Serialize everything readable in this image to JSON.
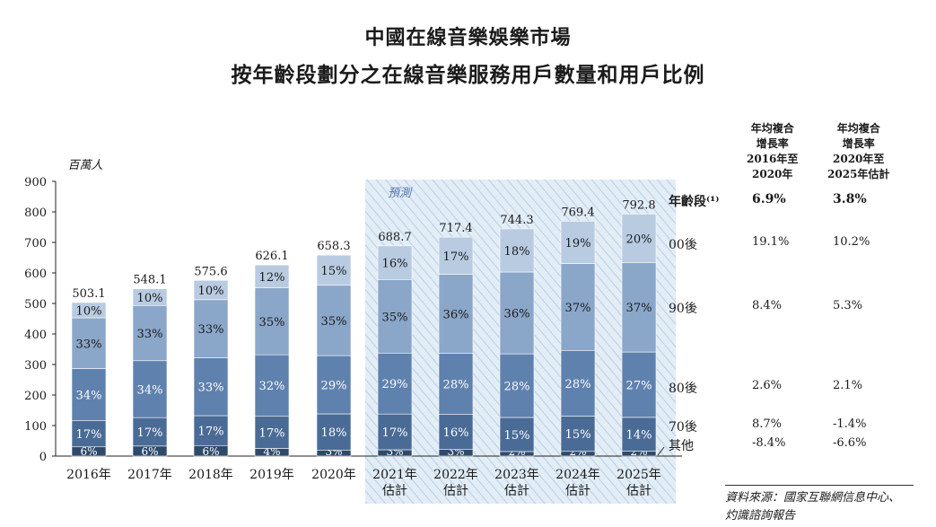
{
  "title_line1": "中國在線音樂娛樂市場",
  "title_line2": "按年齡段劃分之在線音樂服務用戶數量和用戶比例",
  "unit": "百萬人",
  "forecast_label": "預測",
  "cagr_headers": [
    "年均複合\n增長率\n2016年至\n2020年",
    "年均複合\n增長率\n2020年至\n2025年估計"
  ],
  "age_group_header": "年齡段⁽¹⁾",
  "segments": [
    {
      "name": "00後",
      "cagr1": "19.1%",
      "cagr2": "10.2%"
    },
    {
      "name": "90後",
      "cagr1": "8.4%",
      "cagr2": "5.3%"
    },
    {
      "name": "80後",
      "cagr1": "2.6%",
      "cagr2": "2.1%"
    },
    {
      "name": "70後",
      "cagr1": "8.7%",
      "cagr2": "-1.4%"
    },
    {
      "name": "其他",
      "cagr1": "-8.4%",
      "cagr2": "-6.6%"
    }
  ],
  "total_cagr": {
    "cagr1": "6.9%",
    "cagr2": "3.8%"
  },
  "source": "資料來源：國家互聯網信息中心、\n灼識諮詢報告",
  "colors": {
    "others": "#2e4a6b",
    "gen70": "#4a6b96",
    "gen80": "#5f81ae",
    "gen90": "#8aa6c9",
    "gen00": "#b9cbe1",
    "forecast_bg": "#e3edf6",
    "forecast_hatch": "#b8cee6"
  },
  "chart_data": {
    "type": "bar",
    "stacked": true,
    "categories": [
      "2016年",
      "2017年",
      "2018年",
      "2019年",
      "2020年",
      "2021年\n估計",
      "2022年\n估計",
      "2023年\n估計",
      "2024年\n估計",
      "2025年\n估計"
    ],
    "totals": [
      503.1,
      548.1,
      575.6,
      626.1,
      658.3,
      688.7,
      717.4,
      744.3,
      769.4,
      792.8
    ],
    "series": [
      {
        "name": "其他",
        "percent": [
          6,
          6,
          6,
          4,
          3,
          3,
          3,
          2,
          2,
          2
        ]
      },
      {
        "name": "70後",
        "percent": [
          17,
          17,
          17,
          17,
          18,
          17,
          16,
          15,
          15,
          14
        ]
      },
      {
        "name": "80後",
        "percent": [
          34,
          34,
          33,
          32,
          29,
          29,
          28,
          28,
          28,
          27
        ]
      },
      {
        "name": "90後",
        "percent": [
          33,
          33,
          33,
          35,
          35,
          35,
          36,
          36,
          37,
          37
        ]
      },
      {
        "name": "00後",
        "percent": [
          10,
          10,
          10,
          12,
          15,
          16,
          17,
          18,
          19,
          20
        ]
      }
    ],
    "ylim": [
      0,
      900
    ],
    "yticks": [
      0,
      100,
      200,
      300,
      400,
      500,
      600,
      700,
      800,
      900
    ],
    "ylabel": "百萬人",
    "forecast_start_index": 5
  }
}
